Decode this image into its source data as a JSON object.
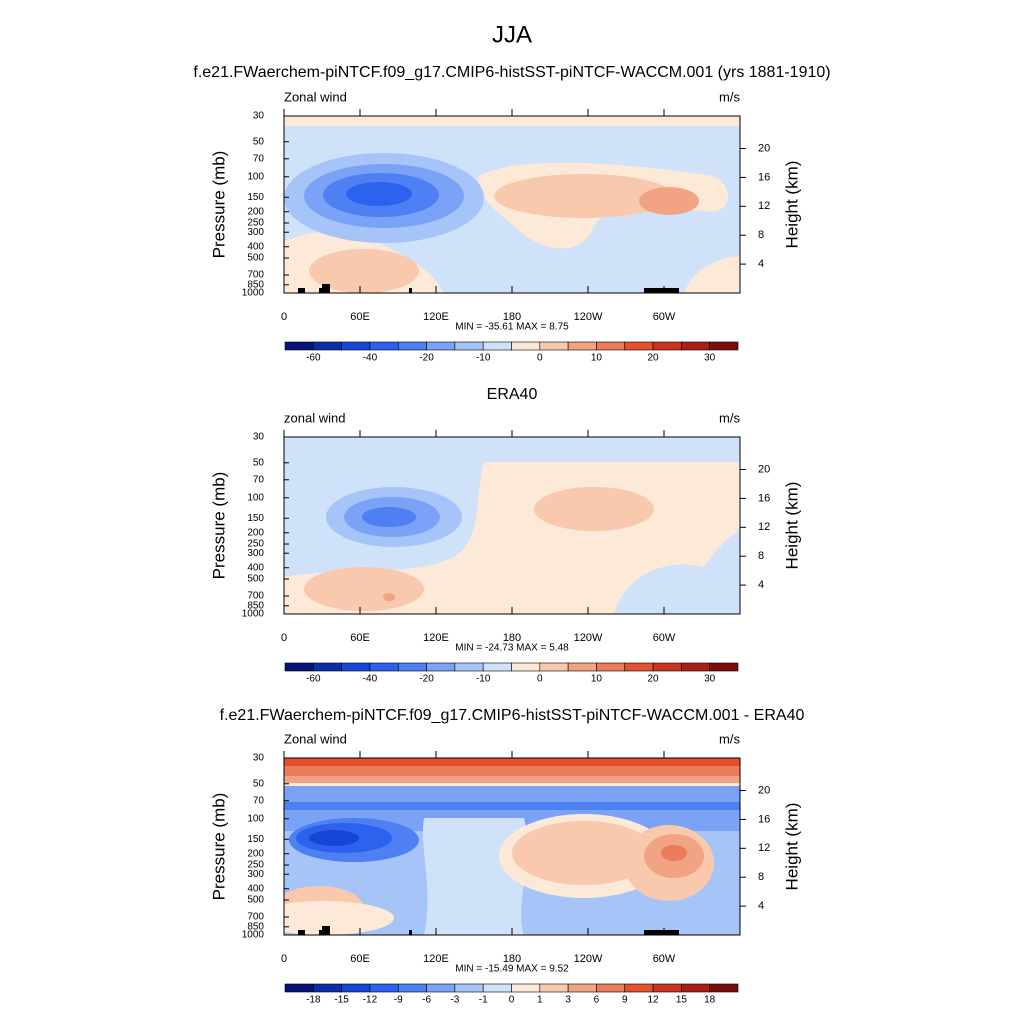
{
  "title": "JJA",
  "chart_data": [
    {
      "type": "contour",
      "title": "f.e21.FWaerchem-piNTCF.f09_g17.CMIP6-histSST-piNTCF-WACCM.001 (yrs 1881-1910)",
      "left_label": "Zonal wind",
      "right_label": "m/s",
      "ylabel": "Pressure (mb)",
      "y2label": "Height (km)",
      "xlim": [
        0,
        360
      ],
      "xticks": [
        0,
        {
          "value": 60,
          "label": "60E"
        },
        {
          "value": 120,
          "label": "120E"
        },
        180,
        {
          "value": 240,
          "label": "120W"
        },
        {
          "value": 300,
          "label": "60W"
        }
      ],
      "ylim": [
        1000,
        30
      ],
      "log_y": true,
      "yticks": [
        30,
        50,
        70,
        100,
        150,
        200,
        250,
        300,
        400,
        500,
        700,
        850,
        1000
      ],
      "y2lim": [
        0,
        24.5
      ],
      "y2ticks": [
        4,
        8,
        12,
        16,
        20
      ],
      "stats": "MIN = -35.61  MAX =   8.75",
      "colors": [
        "#06147a",
        "#0a2eaa",
        "#1546d6",
        "#2d62ee",
        "#4e80f4",
        "#7aa2f6",
        "#a6c4f8",
        "#cfe2fa",
        "#fde9d8",
        "#f8c9ad",
        "#f2a384",
        "#ec7b5c",
        "#e4512f",
        "#cc3422",
        "#a91f16",
        "#7b0d0d"
      ],
      "colorbar_ticks": [
        -60,
        -40,
        -20,
        -10,
        0,
        10,
        20,
        30
      ]
    },
    {
      "type": "contour",
      "title": "ERA40",
      "left_label": "zonal wind",
      "right_label": "m/s",
      "ylabel": "Pressure (mb)",
      "y2label": "Height (km)",
      "xlim": [
        0,
        360
      ],
      "xticks": [
        0,
        {
          "value": 60,
          "label": "60E"
        },
        {
          "value": 120,
          "label": "120E"
        },
        180,
        {
          "value": 240,
          "label": "120W"
        },
        {
          "value": 300,
          "label": "60W"
        }
      ],
      "ylim": [
        1000,
        30
      ],
      "log_y": true,
      "yticks": [
        30,
        50,
        70,
        100,
        150,
        200,
        250,
        300,
        400,
        500,
        700,
        850,
        1000
      ],
      "y2lim": [
        0,
        24.5
      ],
      "y2ticks": [
        4,
        8,
        12,
        16,
        20
      ],
      "stats": "MIN = -24.73  MAX =   5.48",
      "colors": [
        "#06147a",
        "#0a2eaa",
        "#1546d6",
        "#2d62ee",
        "#4e80f4",
        "#7aa2f6",
        "#a6c4f8",
        "#cfe2fa",
        "#fde9d8",
        "#f8c9ad",
        "#f2a384",
        "#ec7b5c",
        "#e4512f",
        "#cc3422",
        "#a91f16",
        "#7b0d0d"
      ],
      "colorbar_ticks": [
        -60,
        -40,
        -20,
        -10,
        0,
        10,
        20,
        30
      ]
    },
    {
      "type": "contour",
      "title": "f.e21.FWaerchem-piNTCF.f09_g17.CMIP6-histSST-piNTCF-WACCM.001 - ERA40",
      "left_label": "Zonal wind",
      "right_label": "m/s",
      "ylabel": "Pressure (mb)",
      "y2label": "Height (km)",
      "xlim": [
        0,
        360
      ],
      "xticks": [
        0,
        {
          "value": 60,
          "label": "60E"
        },
        {
          "value": 120,
          "label": "120E"
        },
        180,
        {
          "value": 240,
          "label": "120W"
        },
        {
          "value": 300,
          "label": "60W"
        }
      ],
      "ylim": [
        1000,
        30
      ],
      "log_y": true,
      "yticks": [
        30,
        50,
        70,
        100,
        150,
        200,
        250,
        300,
        400,
        500,
        700,
        850,
        1000
      ],
      "y2lim": [
        0,
        24.5
      ],
      "y2ticks": [
        4,
        8,
        12,
        16,
        20
      ],
      "stats": "MIN = -15.49  MAX =   9.52",
      "colors": [
        "#06147a",
        "#0a2eaa",
        "#1546d6",
        "#2d62ee",
        "#4e80f4",
        "#7aa2f6",
        "#a6c4f8",
        "#cfe2fa",
        "#fde9d8",
        "#f8c9ad",
        "#f2a384",
        "#ec7b5c",
        "#e4512f",
        "#cc3422",
        "#a91f16",
        "#7b0d0d"
      ],
      "colorbar_ticks": [
        -18,
        -15,
        -12,
        -9,
        -6,
        -3,
        -1,
        0,
        1,
        3,
        6,
        9,
        12,
        15,
        18
      ]
    }
  ]
}
